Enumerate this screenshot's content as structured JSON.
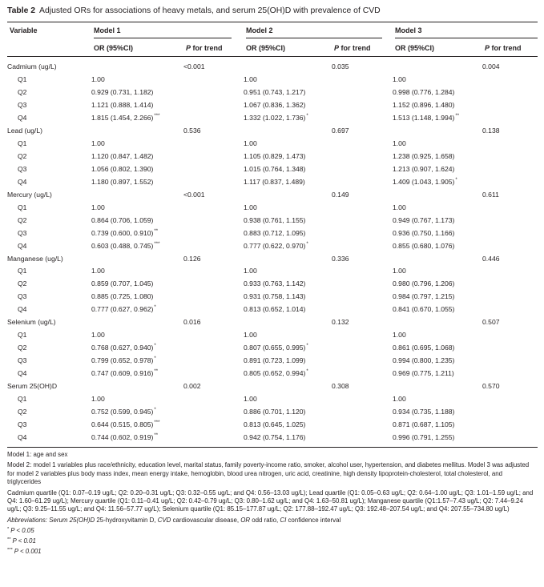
{
  "caption": {
    "label": "Table 2",
    "text": "Adjusted ORs for associations of heavy metals, and serum 25(OH)D with prevalence of CVD"
  },
  "header": {
    "variable": "Variable",
    "models": [
      "Model 1",
      "Model 2",
      "Model 3"
    ],
    "or_label": "OR (95%CI)",
    "p_trend_p": "P",
    "p_trend_rest": " for trend"
  },
  "rows": [
    {
      "label": "Cadmium (ug/L)",
      "group": true,
      "cells": [
        "",
        "<0.001",
        "",
        "0.035",
        "",
        "0.004"
      ]
    },
    {
      "label": "Q1",
      "cells": [
        "1.00",
        "",
        "1.00",
        "",
        "1.00",
        ""
      ]
    },
    {
      "label": "Q2",
      "cells": [
        "0.929 (0.731, 1.182)",
        "",
        "0.951 (0.743, 1.217)",
        "",
        "0.998 (0.776, 1.284)",
        ""
      ]
    },
    {
      "label": "Q3",
      "cells": [
        "1.121 (0.888, 1.414)",
        "",
        "1.067 (0.836, 1.362)",
        "",
        "1.152 (0.896, 1.480)",
        ""
      ]
    },
    {
      "label": "Q4",
      "cells": [
        "1.815 (1.454, 2.266)",
        "",
        "1.332 (1.022, 1.736)",
        "",
        "1.513 (1.148, 1.994)",
        ""
      ],
      "sups": [
        "***",
        "",
        "*",
        "",
        "**",
        ""
      ]
    },
    {
      "label": "Lead (ug/L)",
      "group": true,
      "cells": [
        "",
        "0.536",
        "",
        "0.697",
        "",
        "0.138"
      ]
    },
    {
      "label": "Q1",
      "cells": [
        "1.00",
        "",
        "1.00",
        "",
        "1.00",
        ""
      ]
    },
    {
      "label": "Q2",
      "cells": [
        "1.120 (0.847, 1.482)",
        "",
        "1.105 (0.829, 1.473)",
        "",
        "1.238 (0.925, 1.658)",
        ""
      ]
    },
    {
      "label": "Q3",
      "cells": [
        "1.056 (0.802, 1.390)",
        "",
        "1.015 (0.764, 1.348)",
        "",
        "1.213 (0.907, 1.624)",
        ""
      ]
    },
    {
      "label": "Q4",
      "cells": [
        "1.180 (0.897, 1.552)",
        "",
        "1.117 (0.837, 1.489)",
        "",
        "1.409 (1.043, 1.905)",
        ""
      ],
      "sups": [
        "",
        "",
        "",
        "",
        "*",
        ""
      ]
    },
    {
      "label": "Mercury (ug/L)",
      "group": true,
      "cells": [
        "",
        "<0.001",
        "",
        "0.149",
        "",
        "0.611"
      ]
    },
    {
      "label": "Q1",
      "cells": [
        "1.00",
        "",
        "1.00",
        "",
        "1.00",
        ""
      ]
    },
    {
      "label": "Q2",
      "cells": [
        "0.864 (0.706, 1.059)",
        "",
        "0.938 (0.761, 1.155)",
        "",
        "0.949 (0.767, 1.173)",
        ""
      ]
    },
    {
      "label": "Q3",
      "cells": [
        "0.739 (0.600, 0.910)",
        "",
        "0.883 (0.712, 1.095)",
        "",
        "0.936 (0.750, 1.166)",
        ""
      ],
      "sups": [
        "**",
        "",
        "",
        "",
        "",
        ""
      ]
    },
    {
      "label": "Q4",
      "cells": [
        "0.603 (0.488, 0.745)",
        "",
        "0.777 (0.622, 0.970)",
        "",
        "0.855 (0.680, 1.076)",
        ""
      ],
      "sups": [
        "***",
        "",
        "*",
        "",
        "",
        ""
      ]
    },
    {
      "label": "Manganese (ug/L)",
      "group": true,
      "cells": [
        "",
        "0.126",
        "",
        "0.336",
        "",
        "0.446"
      ]
    },
    {
      "label": "Q1",
      "cells": [
        "1.00",
        "",
        "1.00",
        "",
        "1.00",
        ""
      ]
    },
    {
      "label": "Q2",
      "cells": [
        "0.859 (0.707, 1.045)",
        "",
        "0.933 (0.763, 1.142)",
        "",
        "0.980 (0.796, 1.206)",
        ""
      ]
    },
    {
      "label": "Q3",
      "cells": [
        "0.885 (0.725, 1.080)",
        "",
        "0.931 (0.758, 1.143)",
        "",
        "0.984 (0.797, 1.215)",
        ""
      ]
    },
    {
      "label": "Q4",
      "cells": [
        "0.777 (0.627, 0.962)",
        "",
        "0.813 (0.652, 1.014)",
        "",
        "0.841 (0.670, 1.055)",
        ""
      ],
      "sups": [
        "*",
        "",
        "",
        "",
        "",
        ""
      ]
    },
    {
      "label": "Selenium (ug/L)",
      "group": true,
      "cells": [
        "",
        "0.016",
        "",
        "0.132",
        "",
        "0.507"
      ]
    },
    {
      "label": "Q1",
      "cells": [
        "1.00",
        "",
        "1.00",
        "",
        "1.00",
        ""
      ]
    },
    {
      "label": "Q2",
      "cells": [
        "0.768 (0.627, 0.940)",
        "",
        "0.807 (0.655, 0.995)",
        "",
        "0.861 (0.695, 1.068)",
        ""
      ],
      "sups": [
        "*",
        "",
        "*",
        "",
        "",
        ""
      ]
    },
    {
      "label": "Q3",
      "cells": [
        "0.799 (0.652, 0.978)",
        "",
        "0.891 (0.723, 1.099)",
        "",
        "0.994 (0.800, 1.235)",
        ""
      ],
      "sups": [
        "*",
        "",
        "",
        "",
        "",
        ""
      ]
    },
    {
      "label": "Q4",
      "cells": [
        "0.747 (0.609, 0.916)",
        "",
        "0.805 (0.652, 0.994)",
        "",
        "0.969 (0.775, 1.211)",
        ""
      ],
      "sups": [
        "**",
        "",
        "*",
        "",
        "",
        ""
      ]
    },
    {
      "label": "Serum 25(OH)D",
      "group": true,
      "cells": [
        "",
        "0.002",
        "",
        "0.308",
        "",
        "0.570"
      ]
    },
    {
      "label": "Q1",
      "cells": [
        "1.00",
        "",
        "1.00",
        "",
        "1.00",
        ""
      ]
    },
    {
      "label": "Q2",
      "cells": [
        "0.752 (0.599, 0.945)",
        "",
        "0.886 (0.701, 1.120)",
        "",
        "0.934 (0.735, 1.188)",
        ""
      ],
      "sups": [
        "*",
        "",
        "",
        "",
        "",
        ""
      ]
    },
    {
      "label": "Q3",
      "cells": [
        "0.644 (0.515, 0.805)",
        "",
        "0.813 (0.645, 1.025)",
        "",
        "0.871 (0.687, 1.105)",
        ""
      ],
      "sups": [
        "***",
        "",
        "",
        "",
        "",
        ""
      ]
    },
    {
      "label": "Q4",
      "cells": [
        "0.744 (0.602, 0.919)",
        "",
        "0.942 (0.754, 1.176)",
        "",
        "0.996 (0.791, 1.255)",
        ""
      ],
      "sups": [
        "**",
        "",
        "",
        "",
        "",
        ""
      ]
    }
  ],
  "notes": {
    "model1": "Model 1: age and sex",
    "model23": "Model 2: model 1 variables plus race/ethnicity, education level, marital status, family poverty-income ratio, smoker, alcohol user, hypertension, and diabetes mellitus. Model 3 was adjusted for model 2 variables plus body mass index, mean energy intake, hemoglobin, blood urea nitrogen, uric acid, creatinine, high density lipoprotein-cholesterol, total cholesterol, and triglycerides",
    "quartiles": "Cadmium quartile (Q1: 0.07–0.19 ug/L; Q2: 0.20–0.31 ug/L; Q3: 0.32–0.55 ug/L; and Q4: 0.56–13.03 ug/L); Lead quartile (Q1: 0.05–0.63 ug/L; Q2: 0.64–1.00 ug/L; Q3: 1.01–1.59 ug/L; and Q4: 1.60–61.29 ug/L); Mercury quartile (Q1: 0.11–0.41 ug/L; Q2: 0.42–0.79 ug/L; Q3: 0.80–1.62 ug/L; and Q4: 1.63–50.81 ug/L); Manganese quartile (Q1:1.57–7.43 ug/L; Q2: 7.44–9.24 ug/L; Q3: 9.25–11.55 ug/L; and Q4: 11.56–57.77 ug/L); Selenium quartile (Q1: 85.15–177.87 ug/L; Q2: 177.88–192.47 ug/L; Q3: 192.48–207.54 ug/L; and Q4: 207.55–734.80 ug/L)",
    "abbr_head": "Abbreviations:",
    "abbr_parts": [
      {
        "i": "Serum 25(OH)D",
        "t": " 25-hydroxyvitamin D, "
      },
      {
        "i": "CVD",
        "t": " cardiovascular disease, "
      },
      {
        "i": "OR",
        "t": " odd ratio, "
      },
      {
        "i": "CI",
        "t": " confidence interval"
      }
    ],
    "sig": [
      {
        "mark": "*",
        "text": "P < 0.05"
      },
      {
        "mark": "**",
        "text": "P < 0.01"
      },
      {
        "mark": "***",
        "text": "P < 0.001"
      }
    ]
  }
}
